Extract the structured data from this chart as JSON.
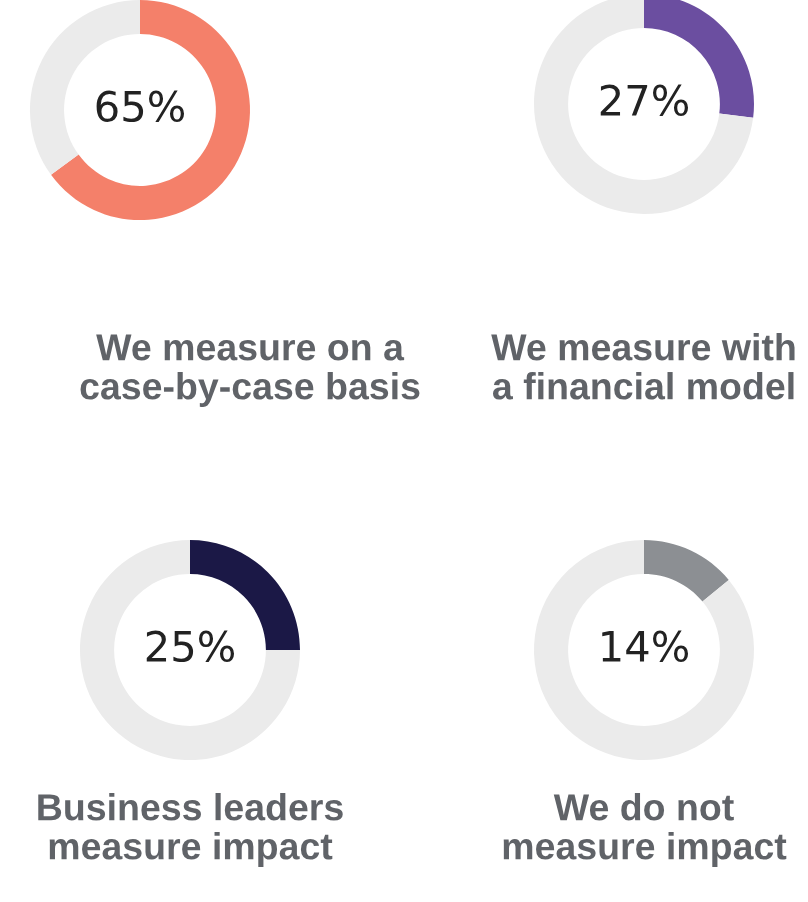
{
  "chart_data": [
    {
      "type": "donut",
      "title": "We measure on a\ncase-by-case basis",
      "categories": [
        null,
        null
      ],
      "values": [
        65,
        35
      ],
      "colors": [
        "#f4806a",
        "#ebebeb"
      ],
      "value_labels": [
        "65%",
        null
      ]
    },
    {
      "type": "donut",
      "title": "We measure with\na financial model",
      "categories": [
        null,
        null
      ],
      "values": [
        27,
        73
      ],
      "colors": [
        "#6b4ea0",
        "#ebebeb"
      ],
      "value_labels": [
        "27%",
        null
      ]
    },
    {
      "type": "donut",
      "title": "Business leaders\nmeasure impact",
      "categories": [
        null,
        null
      ],
      "values": [
        25,
        75
      ],
      "colors": [
        "#1b1846",
        "#ebebeb"
      ],
      "value_labels": [
        "25%",
        null
      ]
    },
    {
      "type": "donut",
      "title": "We do not\nmeasure impact",
      "categories": [
        null,
        null
      ],
      "values": [
        14,
        86
      ],
      "colors": [
        "#8c8f93",
        "#ebebeb"
      ],
      "value_labels": [
        "14%",
        null
      ]
    }
  ]
}
